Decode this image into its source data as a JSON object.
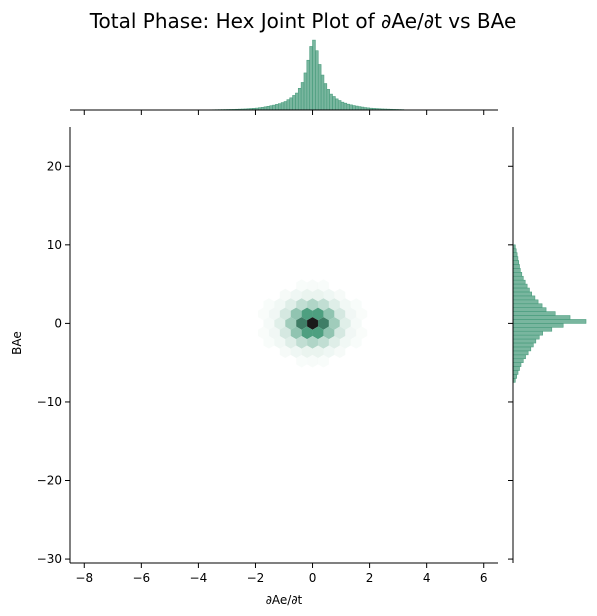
{
  "chart_data": {
    "type": "hexbin-jointplot",
    "title": "Total Phase: Hex Joint Plot of ∂Ae/∂t vs BAe",
    "xlabel": "∂Ae/∂t",
    "ylabel": "BAe",
    "xlim": [
      -8.5,
      6.5
    ],
    "ylim": [
      -30.5,
      25
    ],
    "xticks": [
      -8,
      -6,
      -4,
      -2,
      0,
      2,
      4,
      6
    ],
    "yticks": [
      -30,
      -20,
      -10,
      0,
      10,
      20
    ],
    "xtick_labels": [
      "−8",
      "−6",
      "−4",
      "−2",
      "0",
      "2",
      "4",
      "6"
    ],
    "ytick_labels": [
      "−30",
      "−20",
      "−10",
      "0",
      "10",
      "20"
    ],
    "grid": false,
    "color": "#4c9e7f",
    "dark_color": "#1a1a1a",
    "hexbin": {
      "center": [
        0,
        0
      ],
      "x_spread": 0.9,
      "y_spread": 2.6,
      "extent_x": [
        -2.8,
        2.8
      ],
      "extent_y": [
        -8,
        8
      ]
    },
    "marginal_x": {
      "bin_width": 0.1,
      "bins": [
        {
          "x": -3.6,
          "c": 0.2
        },
        {
          "x": -3.2,
          "c": 0.4
        },
        {
          "x": -2.8,
          "c": 0.6
        },
        {
          "x": -2.4,
          "c": 1.0
        },
        {
          "x": -2.0,
          "c": 1.8
        },
        {
          "x": -1.8,
          "c": 2.5
        },
        {
          "x": -1.6,
          "c": 3.5
        },
        {
          "x": -1.4,
          "c": 4.6
        },
        {
          "x": -1.2,
          "c": 6.0
        },
        {
          "x": -1.0,
          "c": 8.0
        },
        {
          "x": -0.8,
          "c": 11.5
        },
        {
          "x": -0.6,
          "c": 16.0
        },
        {
          "x": -0.5,
          "c": 20.5
        },
        {
          "x": -0.4,
          "c": 26.0
        },
        {
          "x": -0.3,
          "c": 35.0
        },
        {
          "x": -0.2,
          "c": 47.0
        },
        {
          "x": -0.1,
          "c": 60.0
        },
        {
          "x": -0.05,
          "c": 68.0
        },
        {
          "x": 0.0,
          "c": 66.0
        },
        {
          "x": 0.1,
          "c": 56.0
        },
        {
          "x": 0.2,
          "c": 43.0
        },
        {
          "x": 0.3,
          "c": 33.0
        },
        {
          "x": 0.4,
          "c": 25.0
        },
        {
          "x": 0.5,
          "c": 19.5
        },
        {
          "x": 0.6,
          "c": 15.0
        },
        {
          "x": 0.8,
          "c": 10.5
        },
        {
          "x": 1.0,
          "c": 7.4
        },
        {
          "x": 1.2,
          "c": 5.5
        },
        {
          "x": 1.4,
          "c": 4.2
        },
        {
          "x": 1.6,
          "c": 3.2
        },
        {
          "x": 1.8,
          "c": 2.3
        },
        {
          "x": 2.0,
          "c": 1.7
        },
        {
          "x": 2.4,
          "c": 1.0
        },
        {
          "x": 2.8,
          "c": 0.6
        },
        {
          "x": 3.2,
          "c": 0.3
        }
      ]
    },
    "marginal_y": {
      "bin_width": 0.5,
      "bins": [
        {
          "y": 9.5,
          "c": 1.0
        },
        {
          "y": 8.5,
          "c": 1.8
        },
        {
          "y": 7.5,
          "c": 2.5
        },
        {
          "y": 6.5,
          "c": 3.2
        },
        {
          "y": 5.5,
          "c": 4.5
        },
        {
          "y": 4.5,
          "c": 6.2
        },
        {
          "y": 3.5,
          "c": 8.2
        },
        {
          "y": 2.5,
          "c": 11.0
        },
        {
          "y": 1.5,
          "c": 14.5
        },
        {
          "y": 1.0,
          "c": 18.5
        },
        {
          "y": 0.5,
          "c": 25.0
        },
        {
          "y": 0.0,
          "c": 32.0
        },
        {
          "y": -0.5,
          "c": 22.0
        },
        {
          "y": -1.0,
          "c": 17.0
        },
        {
          "y": -1.5,
          "c": 13.0
        },
        {
          "y": -2.5,
          "c": 10.0
        },
        {
          "y": -3.5,
          "c": 7.8
        },
        {
          "y": -4.5,
          "c": 5.5
        },
        {
          "y": -5.5,
          "c": 3.5
        },
        {
          "y": -6.5,
          "c": 2.2
        },
        {
          "y": -7.5,
          "c": 1.0
        }
      ]
    }
  }
}
